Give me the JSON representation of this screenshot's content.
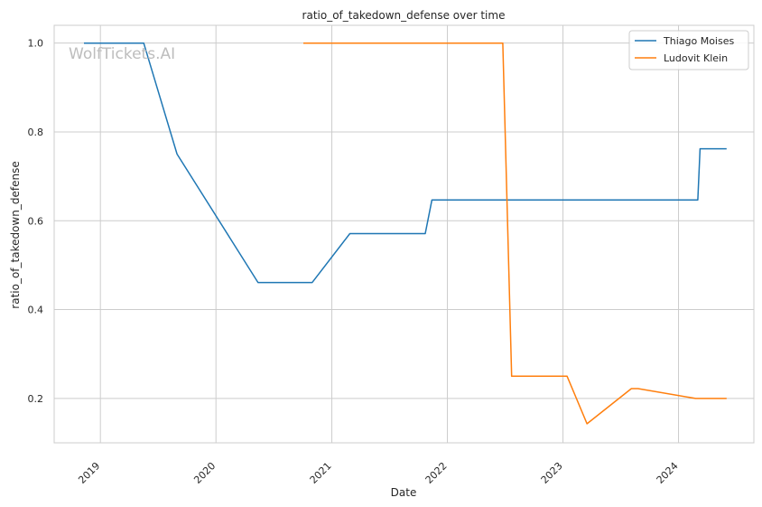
{
  "chart_data": {
    "type": "line",
    "title": "ratio_of_takedown_defense over time",
    "xlabel": "Date",
    "ylabel": "ratio_of_takedown_defense",
    "watermark": "WolfTickets.AI",
    "x_ticks": [
      "2019",
      "2020",
      "2021",
      "2022",
      "2023",
      "2024"
    ],
    "y_ticks": [
      "0.2",
      "0.4",
      "0.6",
      "0.8",
      "1.0"
    ],
    "ylim": [
      0.1,
      1.04
    ],
    "xlim": [
      "2018-08-08",
      "2024-08-26"
    ],
    "grid": true,
    "legend_position": "top-right",
    "series": [
      {
        "name": "Thiago Moises",
        "color": "#1f77b4",
        "points": [
          [
            "2018-11-10",
            1.0
          ],
          [
            "2019-05-18",
            1.0
          ],
          [
            "2019-08-31",
            0.75
          ],
          [
            "2020-05-13",
            0.461
          ],
          [
            "2020-10-31",
            0.461
          ],
          [
            "2021-02-27",
            0.571
          ],
          [
            "2021-10-23",
            0.571
          ],
          [
            "2021-11-13",
            0.647
          ],
          [
            "2024-03-02",
            0.647
          ],
          [
            "2024-03-09",
            0.762
          ],
          [
            "2024-06-01",
            0.762
          ]
        ]
      },
      {
        "name": "Ludovit Klein",
        "color": "#ff7f0e",
        "points": [
          [
            "2020-10-03",
            1.0
          ],
          [
            "2022-06-25",
            1.0
          ],
          [
            "2022-07-23",
            0.25
          ],
          [
            "2023-01-14",
            0.25
          ],
          [
            "2023-03-18",
            0.143
          ],
          [
            "2023-08-05",
            0.222
          ],
          [
            "2023-08-26",
            0.222
          ],
          [
            "2024-02-24",
            0.2
          ],
          [
            "2024-06-01",
            0.2
          ]
        ]
      }
    ]
  }
}
